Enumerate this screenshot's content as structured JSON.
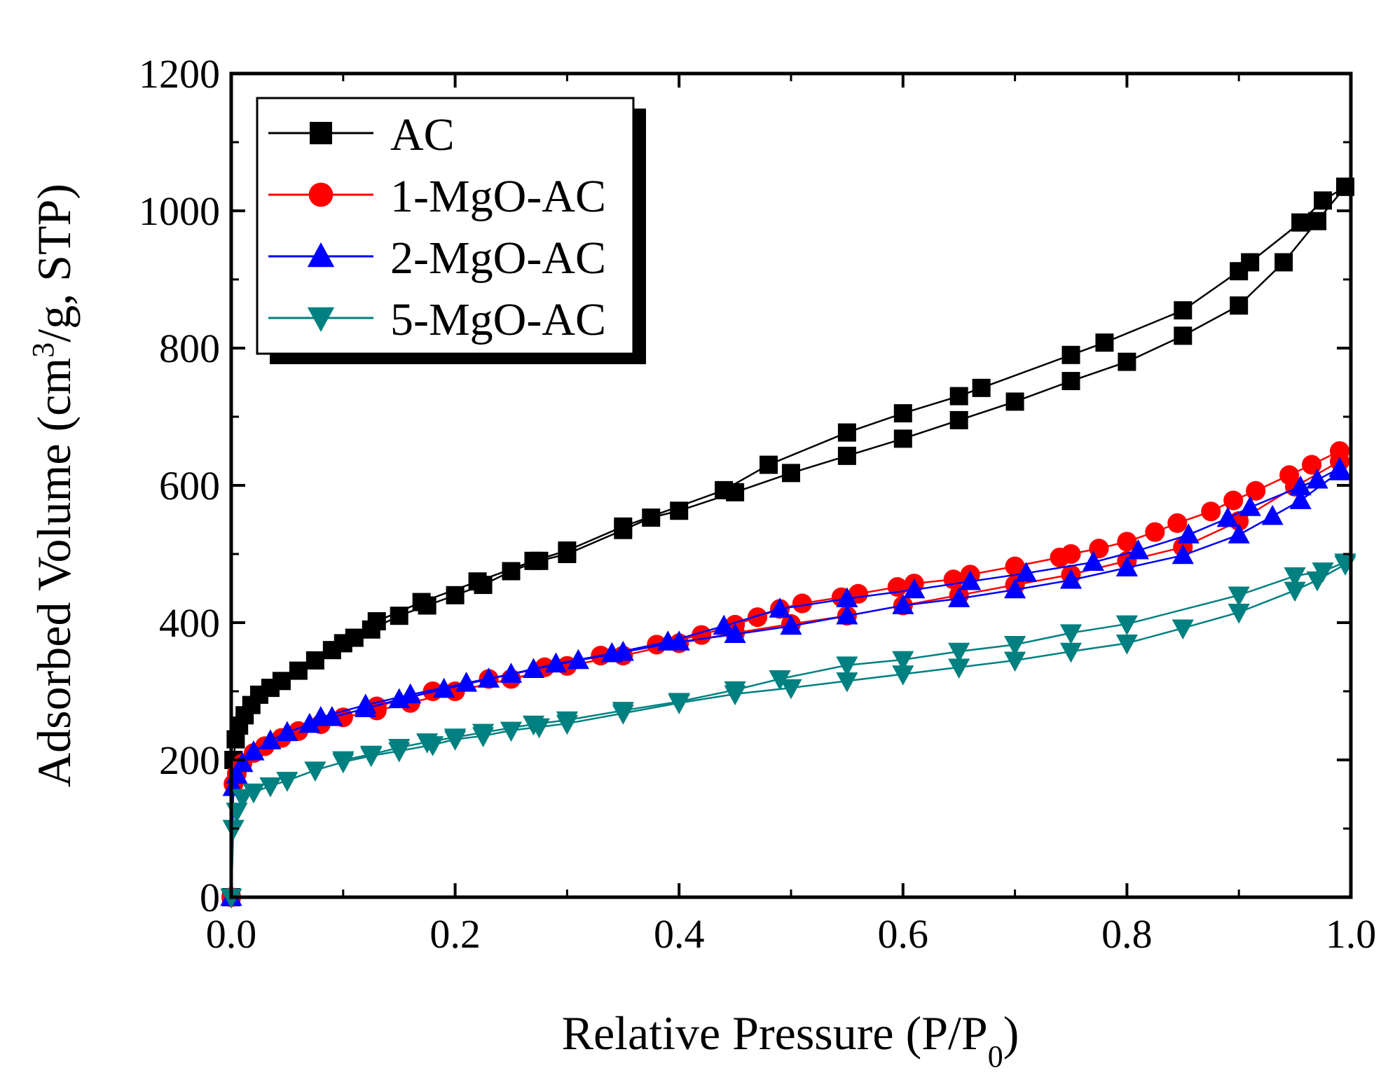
{
  "chart_data": {
    "type": "line",
    "xlabel": {
      "main": "Relative Pressure (P/P",
      "sub": "0",
      "tail": ")"
    },
    "ylabel": {
      "main": "Adsorbed Volume (cm",
      "sup": "3",
      "tail": "/g, STP)"
    },
    "xlim": [
      0,
      1
    ],
    "ylim": [
      0,
      1200
    ],
    "xticks": [
      0,
      0.2,
      0.4,
      0.6,
      0.8,
      1.0
    ],
    "xtick_labels": [
      "0.0",
      "0.2",
      "0.4",
      "0.6",
      "0.8",
      "1.0"
    ],
    "yticks": [
      0,
      200,
      400,
      600,
      800,
      1000,
      1200
    ],
    "ytick_labels": [
      "0",
      "200",
      "400",
      "600",
      "800",
      "1000",
      "1200"
    ],
    "legend_position": "top-left",
    "series": [
      {
        "name": "AC",
        "color": "#000000",
        "marker": "square",
        "adsorption": [
          [
            0.0,
            0
          ],
          [
            0.002,
            200
          ],
          [
            0.004,
            230
          ],
          [
            0.007,
            250
          ],
          [
            0.012,
            265
          ],
          [
            0.018,
            280
          ],
          [
            0.025,
            295
          ],
          [
            0.035,
            305
          ],
          [
            0.045,
            315
          ],
          [
            0.06,
            330
          ],
          [
            0.075,
            345
          ],
          [
            0.09,
            360
          ],
          [
            0.1,
            370
          ],
          [
            0.11,
            378
          ],
          [
            0.125,
            390
          ],
          [
            0.15,
            410
          ],
          [
            0.175,
            425
          ],
          [
            0.2,
            440
          ],
          [
            0.225,
            455
          ],
          [
            0.25,
            475
          ],
          [
            0.275,
            490
          ],
          [
            0.3,
            500
          ],
          [
            0.35,
            535
          ],
          [
            0.375,
            553
          ],
          [
            0.4,
            563
          ],
          [
            0.45,
            590
          ],
          [
            0.5,
            618
          ],
          [
            0.55,
            643
          ],
          [
            0.6,
            668
          ],
          [
            0.65,
            695
          ],
          [
            0.7,
            722
          ],
          [
            0.75,
            752
          ],
          [
            0.8,
            780
          ],
          [
            0.85,
            818
          ],
          [
            0.9,
            862
          ],
          [
            0.94,
            925
          ],
          [
            0.97,
            985
          ],
          [
            0.995,
            1035
          ]
        ],
        "desorption": [
          [
            0.995,
            1035
          ],
          [
            0.975,
            1015
          ],
          [
            0.955,
            983
          ],
          [
            0.91,
            925
          ],
          [
            0.9,
            912
          ],
          [
            0.85,
            855
          ],
          [
            0.78,
            808
          ],
          [
            0.75,
            790
          ],
          [
            0.67,
            742
          ],
          [
            0.65,
            730
          ],
          [
            0.6,
            705
          ],
          [
            0.55,
            677
          ],
          [
            0.48,
            630
          ],
          [
            0.44,
            593
          ],
          [
            0.35,
            540
          ],
          [
            0.3,
            505
          ],
          [
            0.27,
            490
          ],
          [
            0.22,
            460
          ],
          [
            0.17,
            430
          ],
          [
            0.13,
            402
          ]
        ]
      },
      {
        "name": "1-MgO-AC",
        "color": "#ff0000",
        "marker": "circle",
        "adsorption": [
          [
            0.0,
            0
          ],
          [
            0.002,
            165
          ],
          [
            0.005,
            180
          ],
          [
            0.01,
            195
          ],
          [
            0.02,
            210
          ],
          [
            0.03,
            220
          ],
          [
            0.045,
            232
          ],
          [
            0.06,
            242
          ],
          [
            0.08,
            252
          ],
          [
            0.1,
            262
          ],
          [
            0.13,
            272
          ],
          [
            0.16,
            283
          ],
          [
            0.2,
            300
          ],
          [
            0.25,
            318
          ],
          [
            0.3,
            337
          ],
          [
            0.35,
            352
          ],
          [
            0.4,
            370
          ],
          [
            0.45,
            385
          ],
          [
            0.5,
            398
          ],
          [
            0.55,
            410
          ],
          [
            0.6,
            425
          ],
          [
            0.65,
            440
          ],
          [
            0.7,
            455
          ],
          [
            0.75,
            470
          ],
          [
            0.8,
            490
          ],
          [
            0.85,
            510
          ],
          [
            0.9,
            548
          ],
          [
            0.95,
            598
          ],
          [
            0.99,
            635
          ]
        ],
        "desorption": [
          [
            0.99,
            650
          ],
          [
            0.965,
            630
          ],
          [
            0.945,
            615
          ],
          [
            0.915,
            592
          ],
          [
            0.895,
            578
          ],
          [
            0.875,
            562
          ],
          [
            0.845,
            545
          ],
          [
            0.825,
            532
          ],
          [
            0.8,
            518
          ],
          [
            0.775,
            508
          ],
          [
            0.75,
            500
          ],
          [
            0.74,
            495
          ],
          [
            0.7,
            482
          ],
          [
            0.66,
            470
          ],
          [
            0.645,
            463
          ],
          [
            0.61,
            457
          ],
          [
            0.595,
            452
          ],
          [
            0.56,
            442
          ],
          [
            0.545,
            437
          ],
          [
            0.51,
            428
          ],
          [
            0.49,
            420
          ],
          [
            0.47,
            408
          ],
          [
            0.45,
            397
          ],
          [
            0.42,
            382
          ],
          [
            0.38,
            368
          ],
          [
            0.33,
            352
          ],
          [
            0.28,
            335
          ],
          [
            0.23,
            318
          ],
          [
            0.18,
            300
          ],
          [
            0.13,
            278
          ]
        ]
      },
      {
        "name": "2-MgO-AC",
        "color": "#0000ff",
        "marker": "triangle-up",
        "adsorption": [
          [
            0.0,
            0
          ],
          [
            0.002,
            160
          ],
          [
            0.005,
            178
          ],
          [
            0.01,
            195
          ],
          [
            0.02,
            212
          ],
          [
            0.035,
            228
          ],
          [
            0.05,
            240
          ],
          [
            0.07,
            252
          ],
          [
            0.09,
            262
          ],
          [
            0.12,
            275
          ],
          [
            0.15,
            288
          ],
          [
            0.19,
            303
          ],
          [
            0.23,
            318
          ],
          [
            0.27,
            332
          ],
          [
            0.31,
            345
          ],
          [
            0.35,
            357
          ],
          [
            0.4,
            372
          ],
          [
            0.45,
            383
          ],
          [
            0.5,
            395
          ],
          [
            0.55,
            410
          ],
          [
            0.6,
            425
          ],
          [
            0.65,
            435
          ],
          [
            0.7,
            448
          ],
          [
            0.75,
            462
          ],
          [
            0.8,
            480
          ],
          [
            0.85,
            498
          ],
          [
            0.9,
            528
          ],
          [
            0.93,
            555
          ],
          [
            0.955,
            578
          ],
          [
            0.99,
            620
          ]
        ],
        "desorption": [
          [
            0.99,
            625
          ],
          [
            0.97,
            608
          ],
          [
            0.955,
            598
          ],
          [
            0.91,
            568
          ],
          [
            0.89,
            552
          ],
          [
            0.855,
            528
          ],
          [
            0.81,
            505
          ],
          [
            0.77,
            488
          ],
          [
            0.71,
            472
          ],
          [
            0.66,
            460
          ],
          [
            0.61,
            448
          ],
          [
            0.55,
            435
          ],
          [
            0.49,
            420
          ],
          [
            0.44,
            395
          ],
          [
            0.39,
            372
          ],
          [
            0.34,
            355
          ],
          [
            0.29,
            340
          ],
          [
            0.25,
            325
          ],
          [
            0.21,
            312
          ],
          [
            0.16,
            295
          ],
          [
            0.12,
            280
          ],
          [
            0.08,
            262
          ]
        ]
      },
      {
        "name": "5-MgO-AC",
        "color": "#008080",
        "marker": "triangle-down",
        "adsorption": [
          [
            0.0,
            0
          ],
          [
            0.002,
            100
          ],
          [
            0.005,
            125
          ],
          [
            0.01,
            145
          ],
          [
            0.02,
            153
          ],
          [
            0.035,
            162
          ],
          [
            0.05,
            170
          ],
          [
            0.075,
            185
          ],
          [
            0.1,
            197
          ],
          [
            0.125,
            206
          ],
          [
            0.15,
            213
          ],
          [
            0.18,
            222
          ],
          [
            0.2,
            230
          ],
          [
            0.225,
            235
          ],
          [
            0.25,
            243
          ],
          [
            0.275,
            248
          ],
          [
            0.3,
            253
          ],
          [
            0.35,
            268
          ],
          [
            0.4,
            283
          ],
          [
            0.45,
            296
          ],
          [
            0.5,
            305
          ],
          [
            0.55,
            315
          ],
          [
            0.6,
            325
          ],
          [
            0.65,
            335
          ],
          [
            0.7,
            345
          ],
          [
            0.75,
            358
          ],
          [
            0.8,
            370
          ],
          [
            0.85,
            392
          ],
          [
            0.9,
            415
          ],
          [
            0.95,
            447
          ],
          [
            0.97,
            462
          ],
          [
            0.995,
            485
          ]
        ],
        "desorption": [
          [
            0.995,
            488
          ],
          [
            0.975,
            475
          ],
          [
            0.95,
            468
          ],
          [
            0.9,
            440
          ],
          [
            0.8,
            398
          ],
          [
            0.75,
            385
          ],
          [
            0.7,
            368
          ],
          [
            0.65,
            358
          ],
          [
            0.6,
            346
          ],
          [
            0.55,
            338
          ],
          [
            0.49,
            318
          ],
          [
            0.45,
            302
          ],
          [
            0.4,
            285
          ],
          [
            0.35,
            272
          ],
          [
            0.3,
            258
          ],
          [
            0.27,
            252
          ],
          [
            0.225,
            240
          ],
          [
            0.2,
            233
          ],
          [
            0.175,
            226
          ],
          [
            0.15,
            218
          ],
          [
            0.125,
            208
          ],
          [
            0.1,
            200
          ]
        ]
      }
    ]
  }
}
